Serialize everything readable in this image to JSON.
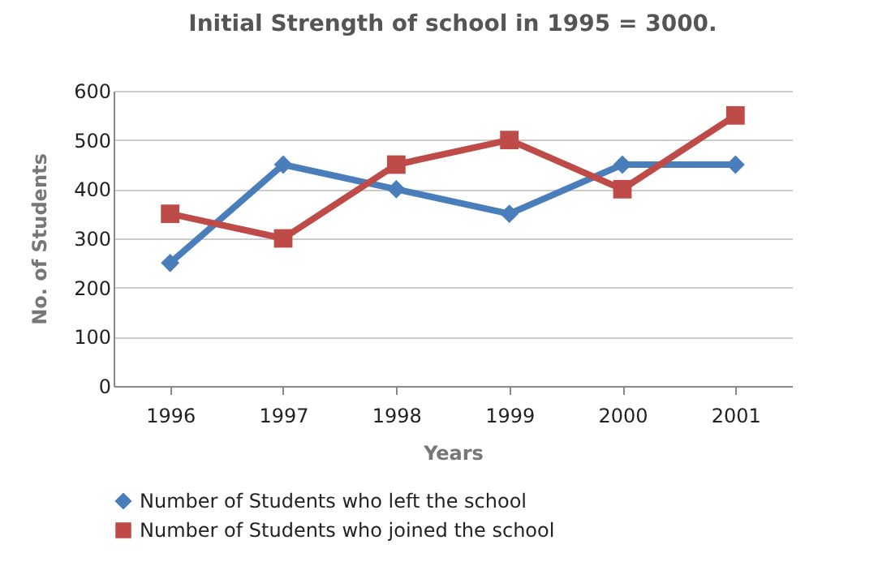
{
  "chart_data": {
    "type": "line",
    "title": "Initial Strength of school in 1995 = 3000.",
    "xlabel": "Years",
    "ylabel": "No. of Students",
    "categories": [
      "1996",
      "1997",
      "1998",
      "1999",
      "2000",
      "2001"
    ],
    "series": [
      {
        "name": "Number of Students who left the school",
        "color": "#4a7ebb",
        "marker": "diamond",
        "values": [
          250,
          450,
          400,
          350,
          450,
          450
        ]
      },
      {
        "name": "Number of Students who joined the school",
        "color": "#be4b48",
        "marker": "square",
        "values": [
          350,
          300,
          450,
          500,
          400,
          550
        ]
      }
    ],
    "ylim": [
      0,
      600
    ],
    "yticks": [
      0,
      100,
      200,
      300,
      400,
      500,
      600
    ],
    "grid": "y",
    "legend": "bottom"
  }
}
